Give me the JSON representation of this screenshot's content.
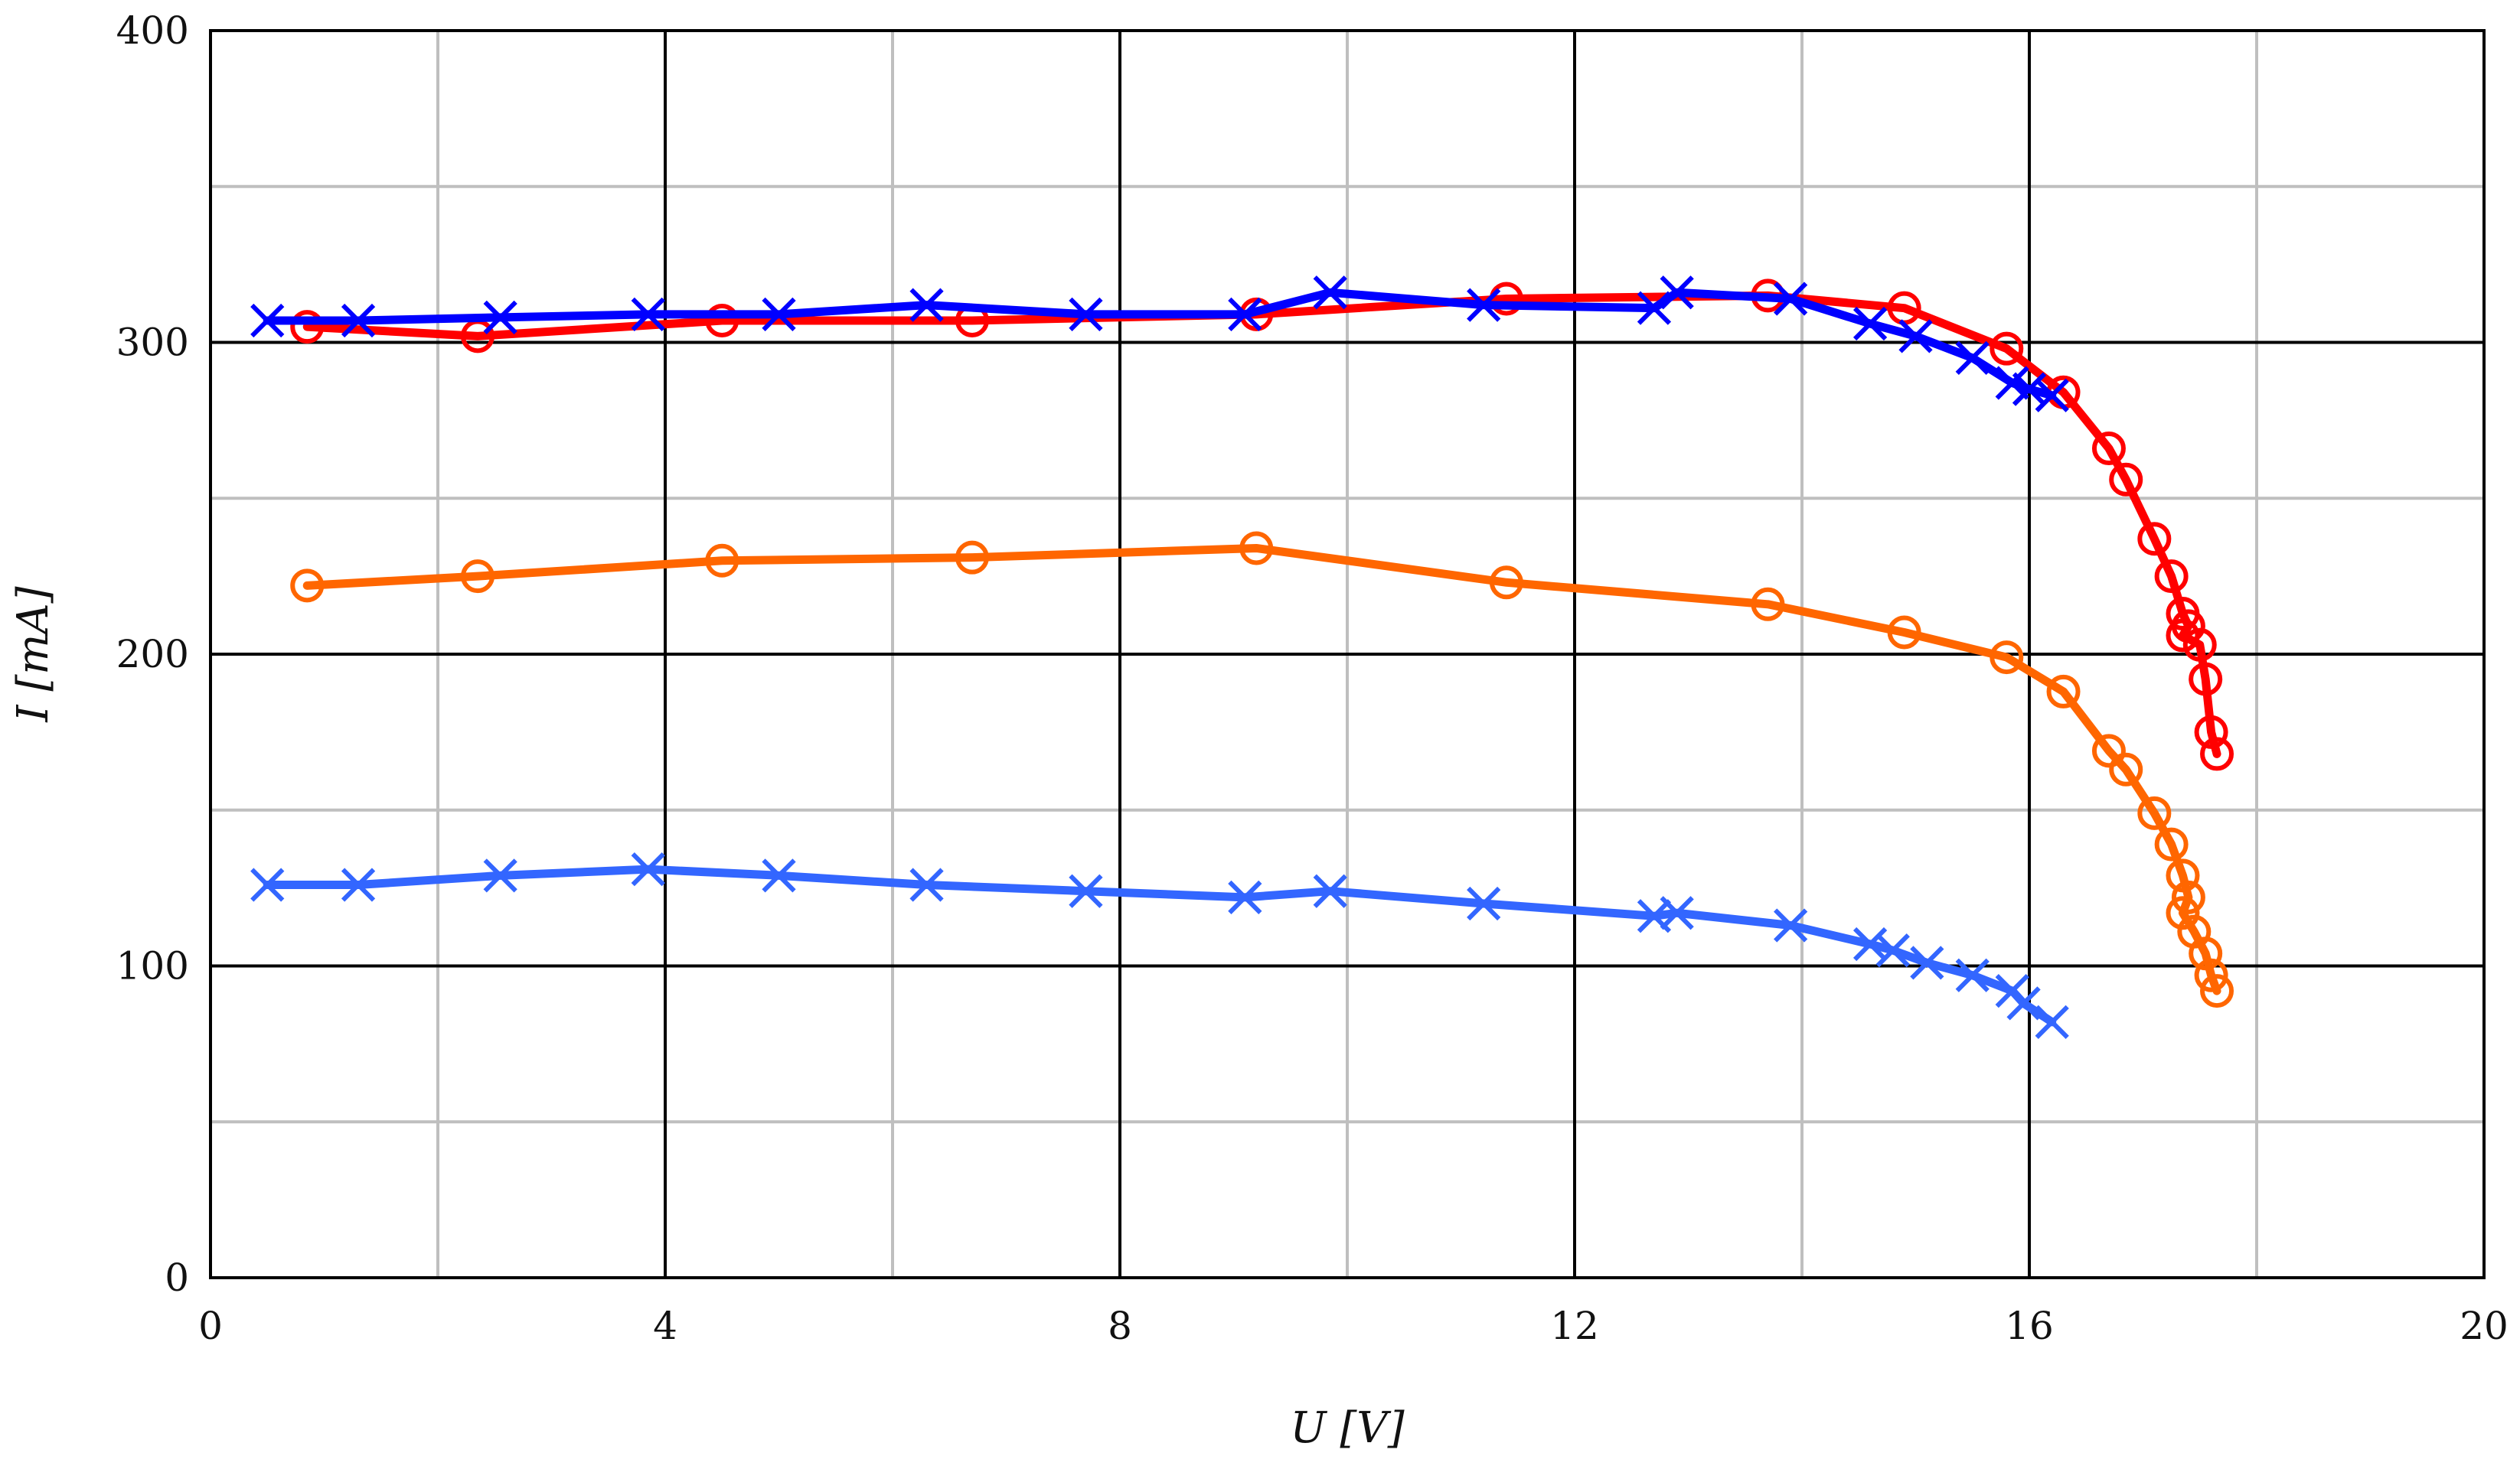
{
  "chart_data": {
    "type": "scatter",
    "title": "",
    "xlabel": "U [V]",
    "ylabel": "I [mA]",
    "xlim": [
      0,
      20
    ],
    "ylim": [
      0,
      400
    ],
    "x_ticks": [
      "0",
      "4",
      "8",
      "12",
      "16",
      "20"
    ],
    "y_ticks": [
      "0",
      "100",
      "200",
      "300",
      "400"
    ],
    "major_grid_step_x": 4,
    "minor_grid_step_x": 2,
    "major_grid_step_y": 100,
    "minor_grid_step_y": 50,
    "grid": true,
    "legend": "none",
    "series": [
      {
        "marker": "circle",
        "color": "#FF6600",
        "points": [
          [
            0.85,
            222
          ],
          [
            2.35,
            225
          ],
          [
            4.5,
            230
          ],
          [
            6.7,
            231
          ],
          [
            9.2,
            234
          ],
          [
            11.4,
            223
          ],
          [
            13.7,
            216
          ],
          [
            14.9,
            207
          ],
          [
            15.8,
            199
          ],
          [
            16.3,
            188
          ],
          [
            16.7,
            169
          ],
          [
            16.85,
            163
          ],
          [
            17.1,
            149
          ],
          [
            17.25,
            139
          ],
          [
            17.35,
            129
          ],
          [
            17.4,
            122
          ],
          [
            17.35,
            117
          ],
          [
            17.45,
            111
          ],
          [
            17.55,
            104
          ],
          [
            17.6,
            97
          ],
          [
            17.65,
            92
          ]
        ]
      },
      {
        "marker": "x",
        "color": "#3366FF",
        "points": [
          [
            0.5,
            126
          ],
          [
            1.3,
            126
          ],
          [
            2.55,
            129
          ],
          [
            3.85,
            131
          ],
          [
            5.0,
            129
          ],
          [
            6.3,
            126
          ],
          [
            7.7,
            124
          ],
          [
            9.1,
            122
          ],
          [
            9.85,
            124
          ],
          [
            11.2,
            120
          ],
          [
            12.7,
            116
          ],
          [
            12.9,
            117
          ],
          [
            13.9,
            113
          ],
          [
            14.6,
            107
          ],
          [
            14.8,
            105
          ],
          [
            15.1,
            101
          ],
          [
            15.5,
            97
          ],
          [
            15.85,
            92
          ],
          [
            15.95,
            88
          ],
          [
            16.2,
            82
          ]
        ]
      },
      {
        "marker": "circle",
        "color": "#FF0000",
        "points": [
          [
            0.85,
            305
          ],
          [
            2.35,
            302
          ],
          [
            4.5,
            307
          ],
          [
            6.7,
            307
          ],
          [
            9.2,
            309
          ],
          [
            11.4,
            314
          ],
          [
            13.7,
            315
          ],
          [
            14.9,
            311
          ],
          [
            15.8,
            298
          ],
          [
            16.3,
            284
          ],
          [
            16.7,
            266
          ],
          [
            16.85,
            256
          ],
          [
            17.1,
            237
          ],
          [
            17.25,
            225
          ],
          [
            17.35,
            213
          ],
          [
            17.4,
            209
          ],
          [
            17.35,
            206
          ],
          [
            17.5,
            203
          ],
          [
            17.55,
            192
          ],
          [
            17.6,
            175
          ],
          [
            17.65,
            168
          ]
        ]
      },
      {
        "marker": "x",
        "color": "#0000FF",
        "points": [
          [
            0.5,
            307
          ],
          [
            1.3,
            307
          ],
          [
            2.55,
            308
          ],
          [
            3.85,
            309
          ],
          [
            5.0,
            309
          ],
          [
            6.3,
            312
          ],
          [
            7.7,
            309
          ],
          [
            9.1,
            309
          ],
          [
            9.85,
            316
          ],
          [
            11.2,
            312
          ],
          [
            12.7,
            311
          ],
          [
            12.9,
            316
          ],
          [
            13.9,
            314
          ],
          [
            14.6,
            306
          ],
          [
            15.0,
            302
          ],
          [
            15.5,
            295
          ],
          [
            15.85,
            287
          ],
          [
            16.0,
            285
          ],
          [
            16.2,
            283
          ]
        ]
      }
    ]
  }
}
